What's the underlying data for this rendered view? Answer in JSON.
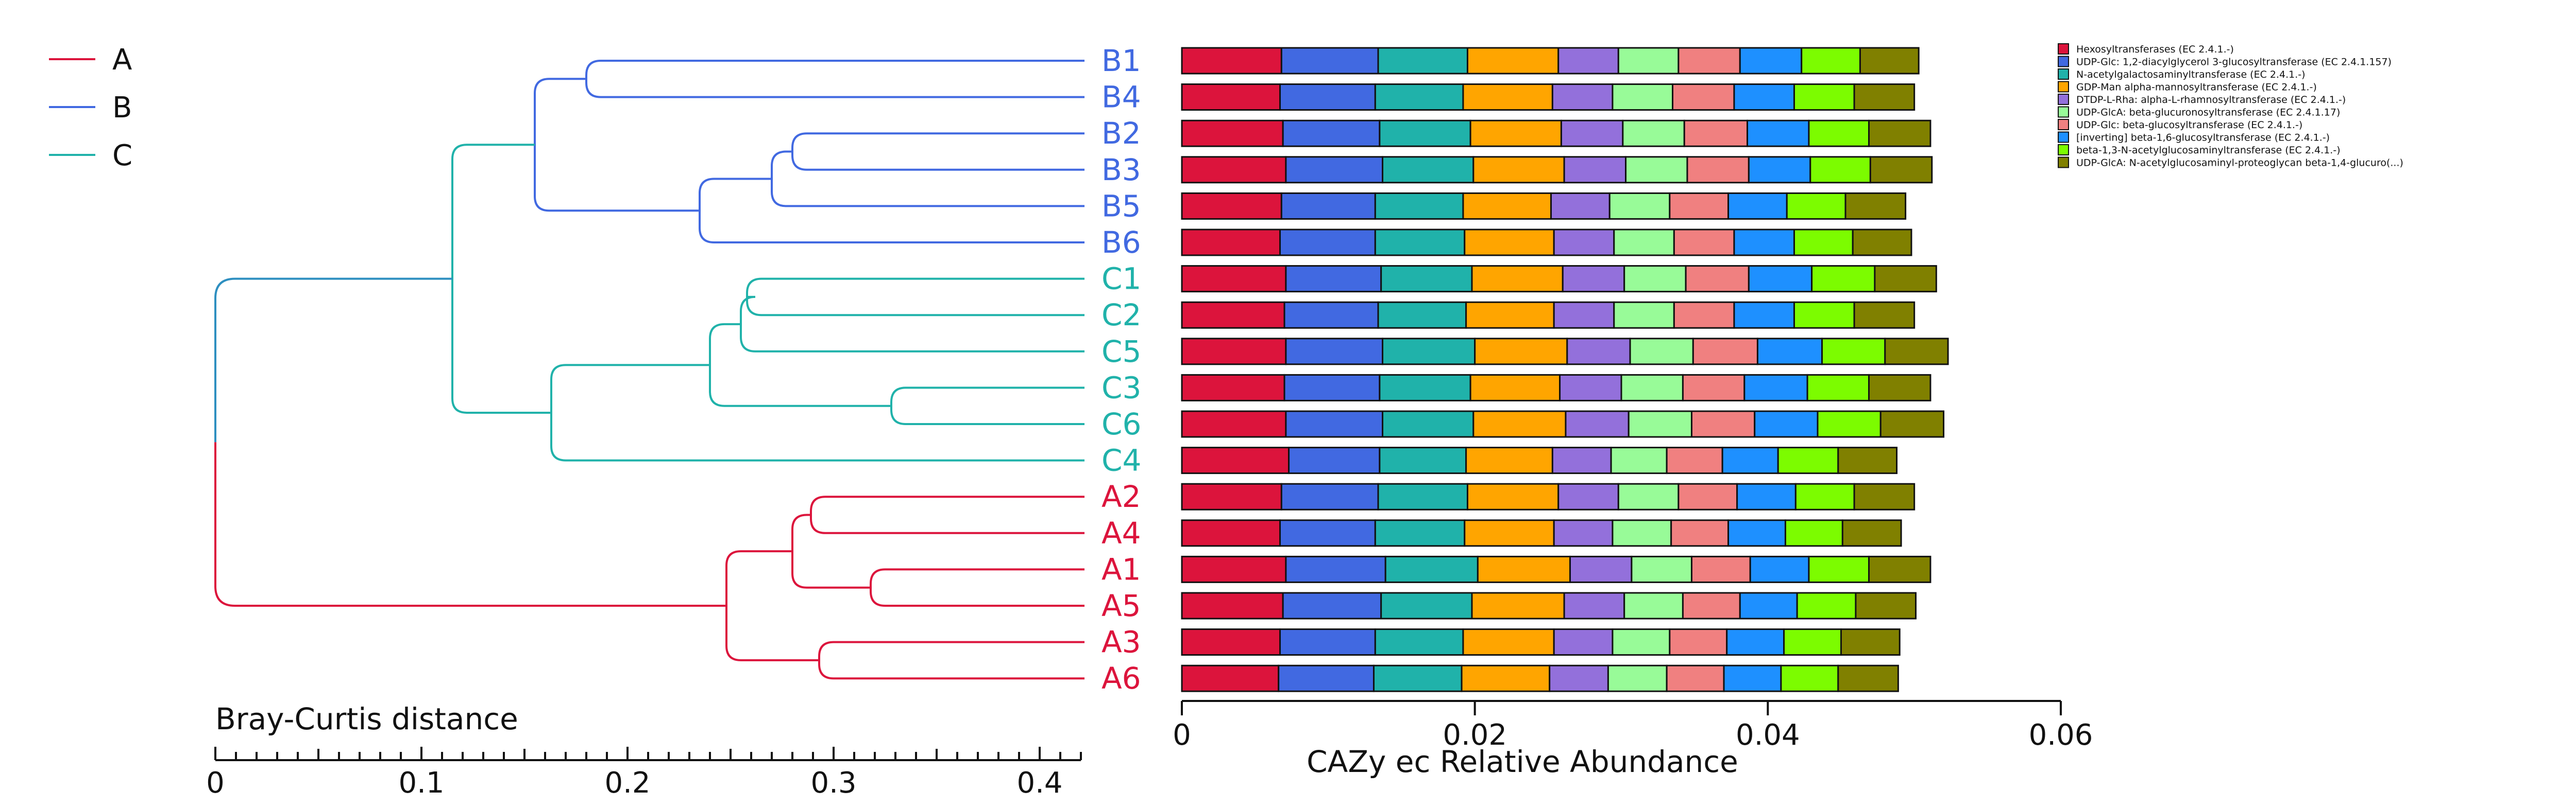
{
  "groups": [
    {
      "id": "A",
      "label": "A",
      "color": "#dc143c"
    },
    {
      "id": "B",
      "label": "B",
      "color": "#4169e1"
    },
    {
      "id": "C",
      "label": "C",
      "color": "#20b2aa"
    }
  ],
  "root_link_color": "#2e8fc0",
  "dendrogram": {
    "title": "Bray-Curtis distance",
    "ticks": [
      "0",
      "0.1",
      "0.2",
      "0.3",
      "0.4"
    ],
    "range": [
      0,
      0.42
    ],
    "leaves": [
      {
        "name": "B1",
        "group": "B"
      },
      {
        "name": "B4",
        "group": "B"
      },
      {
        "name": "B2",
        "group": "B"
      },
      {
        "name": "B3",
        "group": "B"
      },
      {
        "name": "B5",
        "group": "B"
      },
      {
        "name": "B6",
        "group": "B"
      },
      {
        "name": "C1",
        "group": "C"
      },
      {
        "name": "C2",
        "group": "C"
      },
      {
        "name": "C5",
        "group": "C"
      },
      {
        "name": "C3",
        "group": "C"
      },
      {
        "name": "C6",
        "group": "C"
      },
      {
        "name": "C4",
        "group": "C"
      },
      {
        "name": "A2",
        "group": "A"
      },
      {
        "name": "A4",
        "group": "A"
      },
      {
        "name": "A1",
        "group": "A"
      },
      {
        "name": "A5",
        "group": "A"
      },
      {
        "name": "A3",
        "group": "A"
      },
      {
        "name": "A6",
        "group": "A"
      }
    ],
    "merges": [
      {
        "id": "m1",
        "a": "B1",
        "b": "B4",
        "h": 0.18,
        "group": "B"
      },
      {
        "id": "m2",
        "a": "B2",
        "b": "B3",
        "h": 0.28,
        "group": "B"
      },
      {
        "id": "m3",
        "a": "m2",
        "b": "B5",
        "h": 0.27,
        "group": "B"
      },
      {
        "id": "m4",
        "a": "m3",
        "b": "B6",
        "h": 0.235,
        "group": "B"
      },
      {
        "id": "m5",
        "a": "m1",
        "b": "m4",
        "h": 0.155,
        "group": "B"
      },
      {
        "id": "m6",
        "a": "C1",
        "b": "C2",
        "h": 0.258,
        "group": "C"
      },
      {
        "id": "m7",
        "a": "m6",
        "b": "C5",
        "h": 0.255,
        "group": "C"
      },
      {
        "id": "m8",
        "a": "C3",
        "b": "C6",
        "h": 0.328,
        "group": "C"
      },
      {
        "id": "m9",
        "a": "m7",
        "b": "m8",
        "h": 0.24,
        "group": "C"
      },
      {
        "id": "m10",
        "a": "m9",
        "b": "C4",
        "h": 0.163,
        "group": "C"
      },
      {
        "id": "m11",
        "a": "m5",
        "b": "m10",
        "h": 0.115,
        "group": "C"
      },
      {
        "id": "m12",
        "a": "A2",
        "b": "A4",
        "h": 0.289,
        "group": "A"
      },
      {
        "id": "m13",
        "a": "A1",
        "b": "A5",
        "h": 0.318,
        "group": "A"
      },
      {
        "id": "m14",
        "a": "m12",
        "b": "m13",
        "h": 0.28,
        "group": "A"
      },
      {
        "id": "m15",
        "a": "A3",
        "b": "A6",
        "h": 0.293,
        "group": "A"
      },
      {
        "id": "m16",
        "a": "m14",
        "b": "m15",
        "h": 0.248,
        "group": "A"
      },
      {
        "id": "root",
        "a": "m11",
        "b": "m16",
        "h": 0.0,
        "group": "root"
      }
    ]
  },
  "chart_data": {
    "type": "bar",
    "orientation": "horizontal",
    "stacked": true,
    "xlabel": "CAZy ec Relative Abundance",
    "xlim": [
      0,
      0.06
    ],
    "xticks": [
      "0",
      "0.02",
      "0.04",
      "0.06"
    ],
    "legend_position": "right",
    "categories": [
      "B1",
      "B4",
      "B2",
      "B3",
      "B5",
      "B6",
      "C1",
      "C2",
      "C5",
      "C3",
      "C6",
      "C4",
      "A2",
      "A4",
      "A1",
      "A5",
      "A3",
      "A6"
    ],
    "series": [
      {
        "name": "Hexosyltransferases (EC 2.4.1.-)",
        "color": "#dc143c",
        "values": [
          0.0068,
          0.0067,
          0.0069,
          0.0071,
          0.0068,
          0.0067,
          0.0071,
          0.007,
          0.0071,
          0.007,
          0.0071,
          0.0073,
          0.0068,
          0.0067,
          0.0071,
          0.0069,
          0.0067,
          0.0066
        ]
      },
      {
        "name": "UDP-Glc: 1,2-diacylglycerol 3-glucosyltransferase (EC 2.4.1.157)",
        "color": "#4169e1",
        "values": [
          0.0066,
          0.0065,
          0.0066,
          0.0066,
          0.0064,
          0.0065,
          0.0065,
          0.0064,
          0.0066,
          0.0065,
          0.0066,
          0.0062,
          0.0066,
          0.0065,
          0.0068,
          0.0067,
          0.0065,
          0.0065
        ]
      },
      {
        "name": "N-acetylgalactosaminyltransferase (EC 2.4.1.-)",
        "color": "#20b2aa",
        "values": [
          0.0061,
          0.006,
          0.0062,
          0.0062,
          0.006,
          0.0061,
          0.0062,
          0.006,
          0.0063,
          0.0062,
          0.0062,
          0.0059,
          0.0061,
          0.0061,
          0.0063,
          0.0062,
          0.006,
          0.006
        ]
      },
      {
        "name": "GDP-Man alpha-mannosyltransferase (EC 2.4.1.-)",
        "color": "#ffa500",
        "values": [
          0.0062,
          0.0061,
          0.0062,
          0.0062,
          0.006,
          0.0061,
          0.0062,
          0.006,
          0.0063,
          0.0061,
          0.0063,
          0.0059,
          0.0062,
          0.0061,
          0.0063,
          0.0063,
          0.0062,
          0.006
        ]
      },
      {
        "name": "DTDP-L-Rha: alpha-L-rhamnosyltransferase (EC 2.4.1.-)",
        "color": "#9370db",
        "values": [
          0.0041,
          0.0041,
          0.0042,
          0.0042,
          0.004,
          0.0041,
          0.0042,
          0.0041,
          0.0043,
          0.0042,
          0.0043,
          0.004,
          0.0041,
          0.004,
          0.0042,
          0.0041,
          0.004,
          0.004
        ]
      },
      {
        "name": "UDP-GlcA: beta-glucuronosyltransferase (EC 2.4.1.17)",
        "color": "#98fb98",
        "values": [
          0.0041,
          0.0041,
          0.0042,
          0.0042,
          0.0041,
          0.0041,
          0.0042,
          0.0041,
          0.0043,
          0.0042,
          0.0043,
          0.0038,
          0.0041,
          0.004,
          0.0041,
          0.004,
          0.0039,
          0.004
        ]
      },
      {
        "name": "UDP-Glc: beta-glucosyltransferase (EC 2.4.1.-)",
        "color": "#f08080",
        "values": [
          0.0042,
          0.0042,
          0.0043,
          0.0042,
          0.004,
          0.0041,
          0.0043,
          0.0041,
          0.0044,
          0.0042,
          0.0043,
          0.0038,
          0.004,
          0.0039,
          0.004,
          0.0039,
          0.0039,
          0.0039
        ]
      },
      {
        "name": "[inverting] beta-1,6-glucosyltransferase (EC 2.4.1.-)",
        "color": "#1e90ff",
        "values": [
          0.0042,
          0.0041,
          0.0042,
          0.0042,
          0.004,
          0.0041,
          0.0043,
          0.0041,
          0.0044,
          0.0043,
          0.0043,
          0.0038,
          0.004,
          0.0039,
          0.004,
          0.0039,
          0.0039,
          0.0039
        ]
      },
      {
        "name": "beta-1,3-N-acetylglucosaminyltransferase (EC 2.4.1.-)",
        "color": "#7cfc00",
        "values": [
          0.004,
          0.0041,
          0.0041,
          0.0041,
          0.004,
          0.004,
          0.0043,
          0.0041,
          0.0043,
          0.0042,
          0.0043,
          0.0041,
          0.004,
          0.0039,
          0.0041,
          0.004,
          0.0039,
          0.0039
        ]
      },
      {
        "name": "UDP-GlcA: N-acetylglucosaminyl-proteoglycan beta-1,4-glucuro(...)",
        "color": "#808000",
        "values": [
          0.004,
          0.0041,
          0.0042,
          0.0042,
          0.0041,
          0.004,
          0.0042,
          0.0041,
          0.0043,
          0.0042,
          0.0043,
          0.004,
          0.0041,
          0.004,
          0.0042,
          0.0041,
          0.004,
          0.0041
        ]
      }
    ]
  }
}
